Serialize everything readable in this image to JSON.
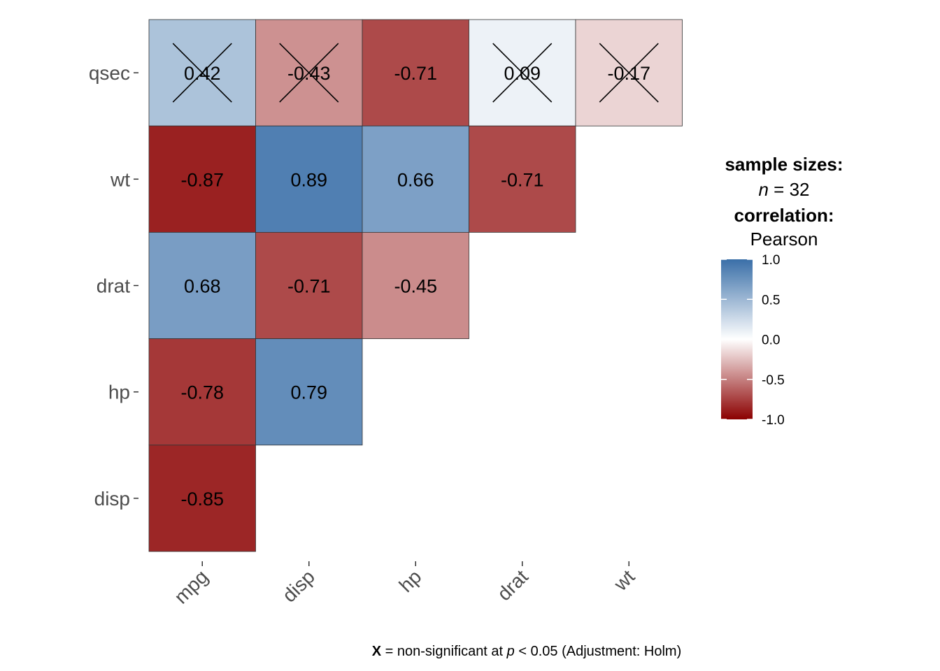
{
  "chart_data": {
    "type": "heatmap",
    "subtype": "correlation-matrix-lower-triangle",
    "x_labels": [
      "mpg",
      "disp",
      "hp",
      "drat",
      "wt"
    ],
    "y_labels": [
      "disp",
      "hp",
      "drat",
      "wt",
      "qsec"
    ],
    "cells": [
      {
        "x": "mpg",
        "y": "qsec",
        "value": 0.42,
        "label": "0.42",
        "nonsignificant": true
      },
      {
        "x": "disp",
        "y": "qsec",
        "value": -0.43,
        "label": "-0.43",
        "nonsignificant": true
      },
      {
        "x": "hp",
        "y": "qsec",
        "value": -0.71,
        "label": "-0.71",
        "nonsignificant": false
      },
      {
        "x": "drat",
        "y": "qsec",
        "value": 0.09,
        "label": "0.09",
        "nonsignificant": true
      },
      {
        "x": "wt",
        "y": "qsec",
        "value": -0.17,
        "label": "-0.17",
        "nonsignificant": true
      },
      {
        "x": "mpg",
        "y": "wt",
        "value": -0.87,
        "label": "-0.87",
        "nonsignificant": false
      },
      {
        "x": "disp",
        "y": "wt",
        "value": 0.89,
        "label": "0.89",
        "nonsignificant": false
      },
      {
        "x": "hp",
        "y": "wt",
        "value": 0.66,
        "label": "0.66",
        "nonsignificant": false
      },
      {
        "x": "drat",
        "y": "wt",
        "value": -0.71,
        "label": "-0.71",
        "nonsignificant": false
      },
      {
        "x": "mpg",
        "y": "drat",
        "value": 0.68,
        "label": "0.68",
        "nonsignificant": false
      },
      {
        "x": "disp",
        "y": "drat",
        "value": -0.71,
        "label": "-0.71",
        "nonsignificant": false
      },
      {
        "x": "hp",
        "y": "drat",
        "value": -0.45,
        "label": "-0.45",
        "nonsignificant": false
      },
      {
        "x": "mpg",
        "y": "hp",
        "value": -0.78,
        "label": "-0.78",
        "nonsignificant": false
      },
      {
        "x": "disp",
        "y": "hp",
        "value": 0.79,
        "label": "0.79",
        "nonsignificant": false
      },
      {
        "x": "mpg",
        "y": "disp",
        "value": -0.85,
        "label": "-0.85",
        "nonsignificant": false
      }
    ],
    "legend": {
      "heading_1": "sample sizes:",
      "n_symbol": "n",
      "n_value": " = 32",
      "heading_2": "correlation:",
      "method": "Pearson",
      "scale_min": -1.0,
      "scale_max": 1.0,
      "ticks": [
        {
          "value": 1.0,
          "label": "1.0"
        },
        {
          "value": 0.5,
          "label": "0.5"
        },
        {
          "value": 0.0,
          "label": "0.0"
        },
        {
          "value": -0.5,
          "label": "-0.5"
        },
        {
          "value": -1.0,
          "label": "-1.0"
        }
      ]
    },
    "colors": {
      "negative": "#8B0000",
      "midpoint": "#FFFFFF",
      "positive": "#3A6FA8",
      "cell_border": "#333333",
      "cross": "#000000",
      "tick_text": "#4d4d4d"
    },
    "caption": {
      "mark": "X",
      "text_1": " = non-significant at ",
      "p_symbol": "p",
      "text_2": " < 0.05 (Adjustment: Holm)"
    }
  }
}
